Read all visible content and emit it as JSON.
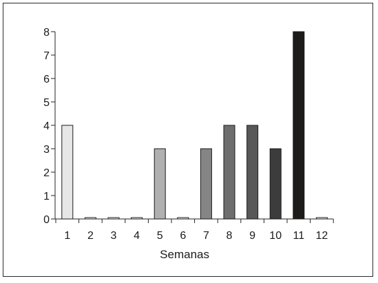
{
  "chart_data": {
    "type": "bar",
    "title": "",
    "xlabel": "Semanas",
    "ylabel": "",
    "categories": [
      "1",
      "2",
      "3",
      "4",
      "5",
      "6",
      "7",
      "8",
      "9",
      "10",
      "11",
      "12"
    ],
    "values": [
      4,
      0,
      0,
      0,
      3,
      0,
      3,
      4,
      4,
      3,
      8,
      0
    ],
    "ylim": [
      0,
      8
    ],
    "yticks": [
      "0",
      "1",
      "2",
      "3",
      "4",
      "5",
      "6",
      "7",
      "8"
    ],
    "grid": false,
    "colors": [
      "#e6e6e6",
      "#ffffff",
      "#ffffff",
      "#ffffff",
      "#b0b0b0",
      "#ffffff",
      "#858585",
      "#6e6e6e",
      "#585858",
      "#3c3c3c",
      "#1e1b1b",
      "#ffffff"
    ]
  }
}
